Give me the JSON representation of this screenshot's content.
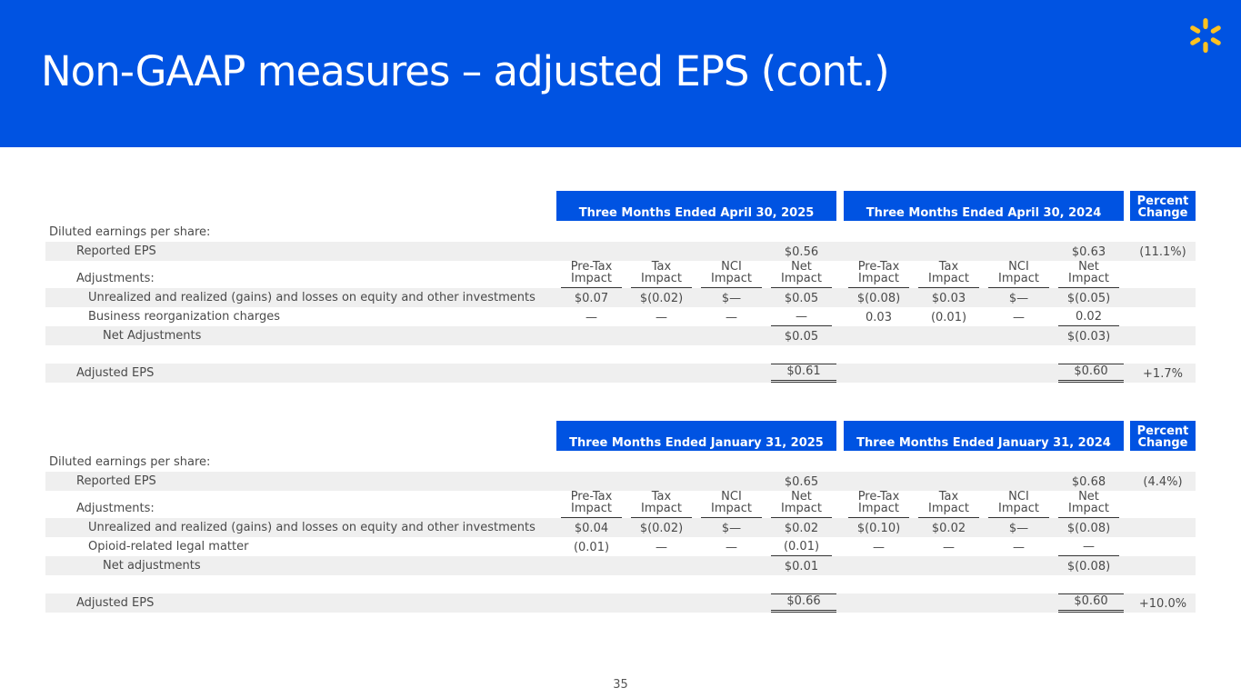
{
  "header": {
    "title": "Non-GAAP measures – adjusted EPS (cont.)"
  },
  "tables": [
    {
      "headers": [
        "Three Months Ended April 30, 2025",
        "Three Months Ended April 30, 2024",
        "Percent Change"
      ],
      "rows": [
        {
          "label": "Diluted earnings per share:",
          "cells": [
            null,
            null,
            null,
            null,
            null,
            null,
            null,
            null,
            null
          ]
        },
        {
          "label": "Reported EPS",
          "cells": [
            null,
            null,
            null,
            "$0.56",
            null,
            null,
            null,
            "$0.63",
            "(11.1%)"
          ]
        },
        {
          "label": "Adjustments:",
          "cells": [
            "Pre-Tax Impact",
            "Tax Impact",
            "NCI Impact",
            "Net Impact",
            "Pre-Tax Impact",
            "Tax Impact",
            "NCI Impact",
            "Net Impact",
            null
          ]
        },
        {
          "label": "Unrealized and realized (gains) and losses on equity and other investments",
          "cells": [
            "$0.07",
            "$(0.02)",
            "$—",
            "$0.05",
            "$(0.08)",
            "$0.03",
            "$—",
            "$(0.05)",
            null
          ]
        },
        {
          "label": "Business reorganization charges",
          "cells": [
            "—",
            "—",
            "—",
            "—",
            "0.03",
            "(0.01)",
            "—",
            "0.02",
            null
          ]
        },
        {
          "label": "Net Adjustments",
          "cells": [
            null,
            null,
            null,
            "$0.05",
            null,
            null,
            null,
            "$(0.03)",
            null
          ]
        },
        {
          "label": "Adjusted EPS",
          "cells": [
            null,
            null,
            null,
            "$0.61",
            null,
            null,
            null,
            "$0.60",
            "+1.7%"
          ]
        }
      ]
    },
    {
      "headers": [
        "Three Months Ended January 31, 2025",
        "Three Months Ended January 31, 2024",
        "Percent Change"
      ],
      "rows": [
        {
          "label": "Diluted earnings per share:",
          "cells": [
            null,
            null,
            null,
            null,
            null,
            null,
            null,
            null,
            null
          ]
        },
        {
          "label": "Reported EPS",
          "cells": [
            null,
            null,
            null,
            "$0.65",
            null,
            null,
            null,
            "$0.68",
            "(4.4%)"
          ]
        },
        {
          "label": "Adjustments:",
          "cells": [
            "Pre-Tax Impact",
            "Tax Impact",
            "NCI Impact",
            "Net Impact",
            "Pre-Tax Impact",
            "Tax Impact",
            "NCI Impact",
            "Net Impact",
            null
          ]
        },
        {
          "label": "Unrealized and realized (gains) and losses on equity and other investments",
          "cells": [
            "$0.04",
            "$(0.02)",
            "$—",
            "$0.02",
            "$(0.10)",
            "$0.02",
            "$—",
            "$(0.08)",
            null
          ]
        },
        {
          "label": "Opioid-related legal matter",
          "cells": [
            "(0.01)",
            "—",
            "—",
            "(0.01)",
            "—",
            "—",
            "—",
            "—",
            null
          ]
        },
        {
          "label": "Net adjustments",
          "cells": [
            null,
            null,
            null,
            "$0.01",
            null,
            null,
            null,
            "$(0.08)",
            null
          ]
        },
        {
          "label": "Adjusted EPS",
          "cells": [
            null,
            null,
            null,
            "$0.66",
            null,
            null,
            null,
            "$0.60",
            "+10.0%"
          ]
        }
      ]
    }
  ],
  "page_number": "35"
}
